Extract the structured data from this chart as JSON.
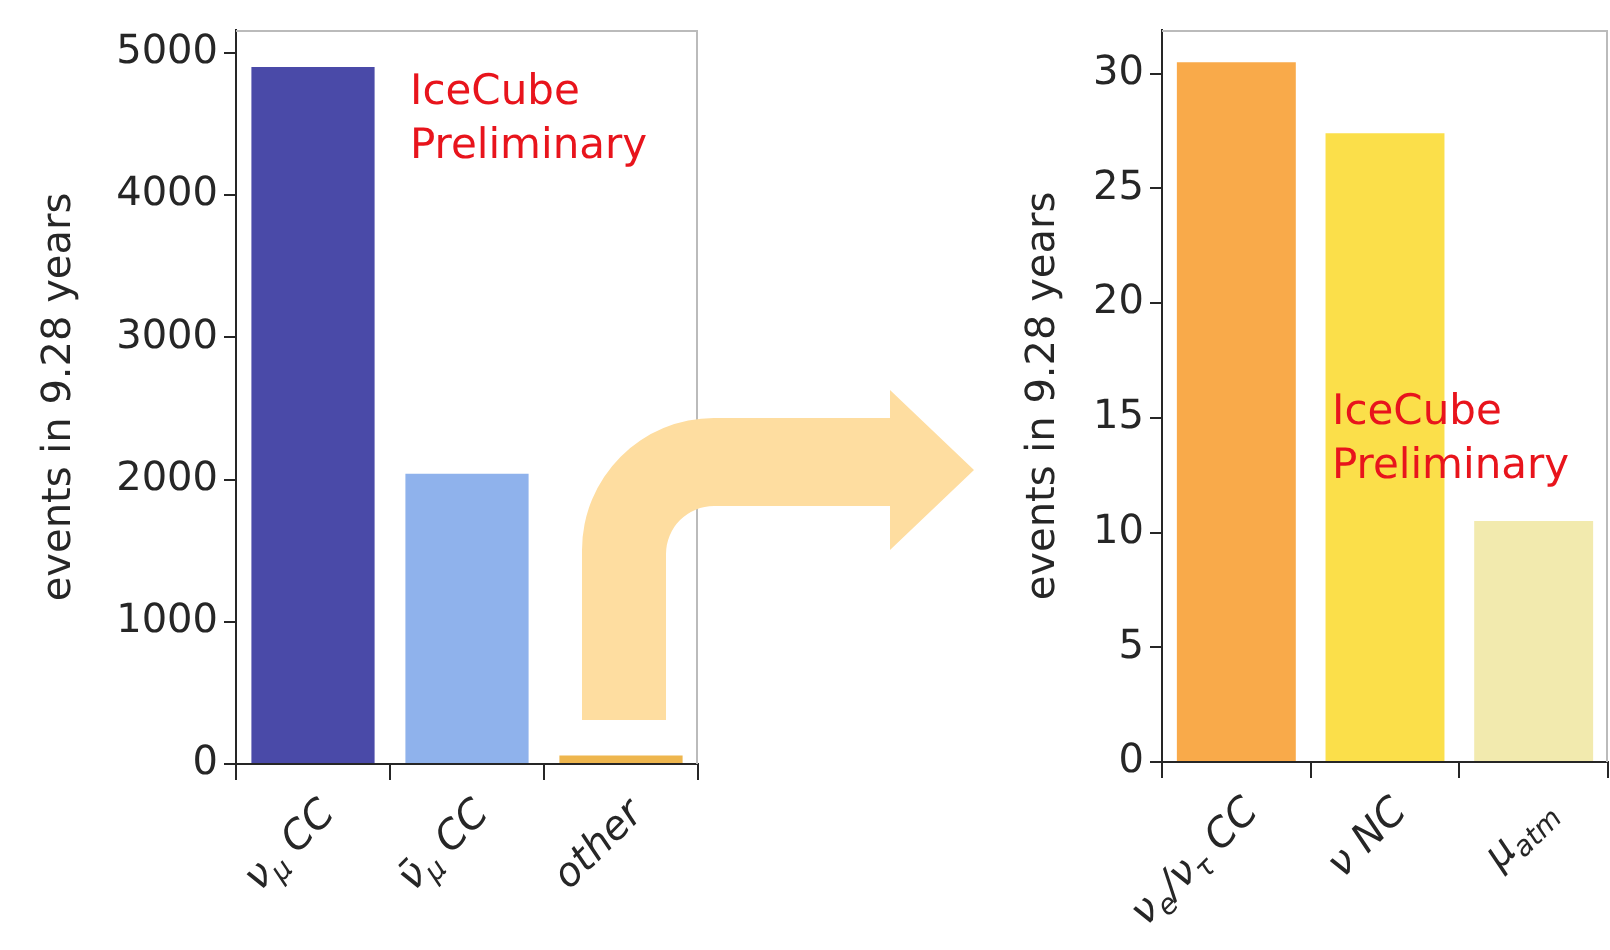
{
  "chart_data": [
    {
      "type": "bar",
      "ylabel": "events in 9.28 years",
      "categories": [
        "ν$_{μ}$ CC",
        "ν̄$_{μ}$ CC",
        "other"
      ],
      "values": [
        4900,
        2040,
        60
      ],
      "colors": [
        "#4a4aa8",
        "#8fb2ec",
        "#eeb64e"
      ],
      "ylim": [
        0,
        5160
      ],
      "yticks": [
        0,
        1000,
        2000,
        3000,
        4000,
        5000
      ],
      "annotations": [
        "IceCube Preliminary"
      ]
    },
    {
      "type": "bar",
      "ylabel": "events in 9.28 years",
      "categories": [
        "ν$_{e}$/ν$_{τ}$ CC",
        "ν NC",
        "μ$_{atm}$"
      ],
      "values": [
        30.5,
        27.4,
        10.5
      ],
      "colors": [
        "#f9aa4a",
        "#fbdf4a",
        "#f2eaae"
      ],
      "ylim": [
        0,
        31.9
      ],
      "yticks": [
        0,
        5,
        10,
        15,
        20,
        25,
        30
      ],
      "annotations": [
        "IceCube Preliminary"
      ]
    }
  ]
}
